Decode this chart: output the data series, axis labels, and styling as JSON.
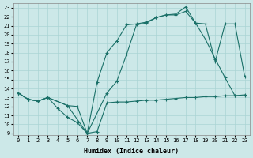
{
  "xlabel": "Humidex (Indice chaleur)",
  "background_color": "#cce8e8",
  "grid_color": "#aad4d4",
  "line_color": "#1a7068",
  "xlim": [
    -0.5,
    23.5
  ],
  "ylim": [
    8.8,
    23.5
  ],
  "xticks": [
    0,
    1,
    2,
    3,
    4,
    5,
    6,
    7,
    8,
    9,
    10,
    11,
    12,
    13,
    14,
    15,
    16,
    17,
    18,
    19,
    20,
    21,
    22,
    23
  ],
  "yticks": [
    9,
    10,
    11,
    12,
    13,
    14,
    15,
    16,
    17,
    18,
    19,
    20,
    21,
    22,
    23
  ],
  "line1_x": [
    0,
    1,
    2,
    3,
    4,
    5,
    6,
    7,
    8,
    9,
    10,
    11,
    12,
    13,
    14,
    15,
    16,
    17,
    18,
    19,
    20,
    21,
    22,
    23
  ],
  "line1_y": [
    13.5,
    12.8,
    12.6,
    13.0,
    11.8,
    10.8,
    10.2,
    9.0,
    9.2,
    12.4,
    12.5,
    12.5,
    12.6,
    12.7,
    12.7,
    12.8,
    12.9,
    13.0,
    13.0,
    13.1,
    13.1,
    13.2,
    13.2,
    13.3
  ],
  "line2_x": [
    0,
    1,
    2,
    3,
    5,
    6,
    7,
    8,
    9,
    10,
    11,
    12,
    13,
    14,
    15,
    16,
    17,
    18,
    19,
    20,
    21,
    22,
    23
  ],
  "line2_y": [
    13.5,
    12.8,
    12.6,
    13.0,
    12.1,
    12.0,
    9.0,
    14.7,
    18.0,
    19.3,
    21.1,
    21.2,
    21.4,
    21.9,
    22.2,
    22.2,
    22.6,
    21.3,
    19.5,
    17.3,
    15.2,
    13.2,
    13.2
  ],
  "line3_x": [
    0,
    1,
    2,
    3,
    5,
    7,
    9,
    10,
    11,
    12,
    13,
    14,
    15,
    16,
    17,
    18,
    19,
    20,
    21,
    22,
    23
  ],
  "line3_y": [
    13.5,
    12.8,
    12.6,
    13.0,
    12.1,
    9.0,
    13.5,
    14.8,
    17.8,
    21.1,
    21.3,
    21.9,
    22.2,
    22.3,
    23.1,
    21.3,
    21.2,
    17.0,
    21.2,
    21.2,
    15.3
  ]
}
